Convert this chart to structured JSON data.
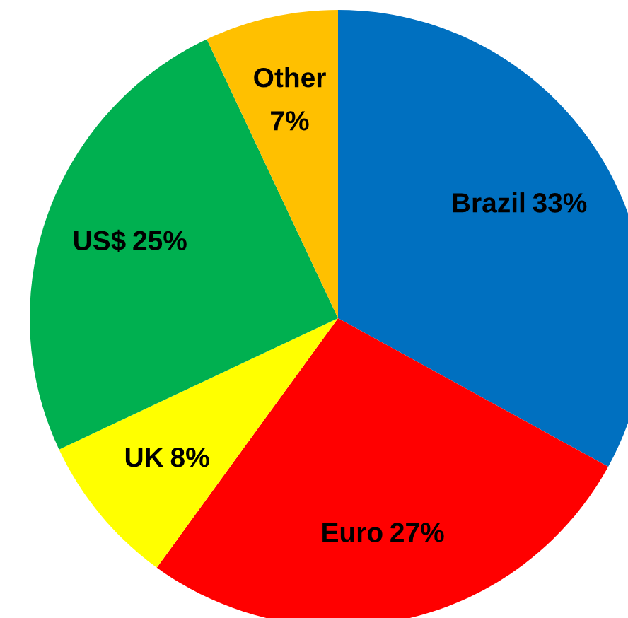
{
  "chart_data": {
    "type": "pie",
    "categories": [
      "Brazil",
      "Euro",
      "UK",
      "US$",
      "Other"
    ],
    "values": [
      33,
      27,
      8,
      25,
      7
    ],
    "colors": [
      "#0070c0",
      "#ff0000",
      "#ffff00",
      "#00b050",
      "#ffc000"
    ],
    "value_labels": [
      "33%",
      "27%",
      "8%",
      "25%",
      "7%"
    ]
  }
}
